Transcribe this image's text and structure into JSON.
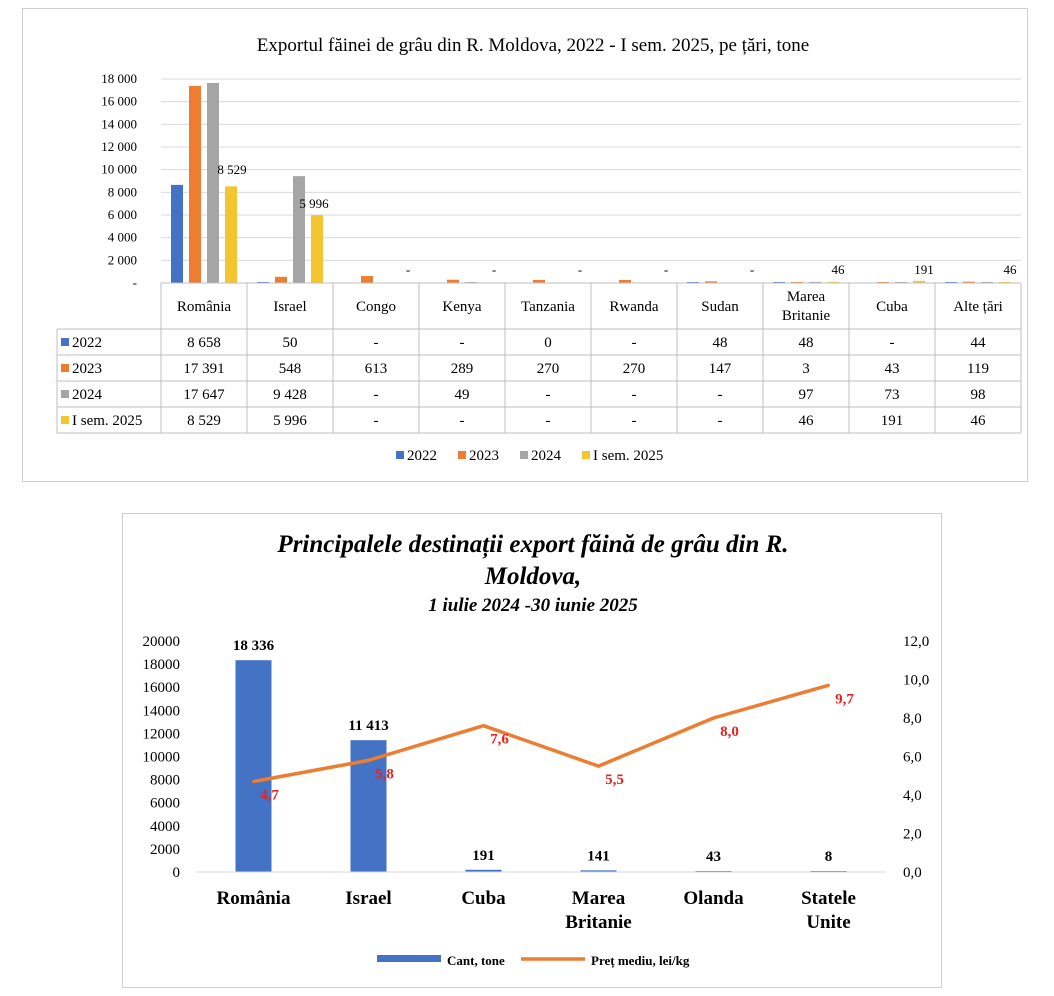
{
  "chart_data": [
    {
      "type": "bar",
      "title": "Exportul făinei de grâu din R. Moldova, 2022 - I sem. 2025, pe țări, tone",
      "categories": [
        "România",
        "Israel",
        "Congo",
        "Kenya",
        "Tanzania",
        "Rwanda",
        "Sudan",
        "Marea Britanie",
        "Cuba",
        "Alte țări"
      ],
      "y_ticks": [
        "18 000",
        "16 000",
        "14 000",
        "12 000",
        "10 000",
        "8 000",
        "6 000",
        "4 000",
        "2 000",
        "-"
      ],
      "ylim": [
        0,
        18000
      ],
      "grid": true,
      "legend_position": "bottom",
      "series": [
        {
          "name": "2022",
          "color": "#4472c4",
          "values": [
            8658,
            50,
            null,
            null,
            0,
            null,
            48,
            48,
            null,
            44
          ],
          "labels": [
            "8 658",
            "50",
            "-",
            "-",
            "0",
            "-",
            "48",
            "48",
            "-",
            "44"
          ]
        },
        {
          "name": "2023",
          "color": "#ed7d31",
          "values": [
            17391,
            548,
            613,
            289,
            270,
            270,
            147,
            3,
            43,
            119
          ],
          "labels": [
            "17 391",
            "548",
            "613",
            "289",
            "270",
            "270",
            "147",
            "3",
            "43",
            "119"
          ]
        },
        {
          "name": "2024",
          "color": "#a5a5a5",
          "values": [
            17647,
            9428,
            null,
            49,
            null,
            null,
            null,
            97,
            73,
            98
          ],
          "labels": [
            "17 647",
            "9 428",
            "-",
            "49",
            "-",
            "-",
            "-",
            "97",
            "73",
            "98"
          ]
        },
        {
          "name": "I sem. 2025",
          "color": "#f4c531",
          "values": [
            8529,
            5996,
            null,
            null,
            null,
            null,
            null,
            46,
            191,
            46
          ],
          "labels": [
            "8 529",
            "5 996",
            "-",
            "-",
            "-",
            "-",
            "-",
            "46",
            "191",
            "46"
          ]
        }
      ]
    },
    {
      "type": "bar",
      "title": "Principalele destinații export făină de grâu din R. Moldova,",
      "subtitle": "1 iulie 2024 -30 iunie 2025",
      "categories": [
        [
          "România"
        ],
        [
          "Israel"
        ],
        [
          "Cuba"
        ],
        [
          "Marea",
          "Britanie"
        ],
        [
          "Olanda"
        ],
        [
          "Statele",
          "Unite"
        ]
      ],
      "ylim": [
        0,
        20000
      ],
      "y_ticks": [
        "20000",
        "18000",
        "16000",
        "14000",
        "12000",
        "10000",
        "8000",
        "6000",
        "4000",
        "2000",
        "0"
      ],
      "y2lim": [
        0,
        12
      ],
      "y2_ticks": [
        "12,0",
        "10,0",
        "8,0",
        "6,0",
        "4,0",
        "2,0",
        "0,0"
      ],
      "legend_position": "bottom",
      "series": [
        {
          "name": "Cant, tone",
          "type": "bar",
          "color": "#4472c4",
          "values": [
            18336,
            11413,
            191,
            141,
            43,
            8
          ],
          "labels": [
            "18 336",
            "11 413",
            "191",
            "141",
            "43",
            "8"
          ]
        },
        {
          "name": "Preț mediu, lei/kg",
          "type": "line",
          "color": "#ed7d31",
          "label_color": "#e8221f",
          "values": [
            4.7,
            5.8,
            7.6,
            5.5,
            8.0,
            9.7
          ],
          "labels": [
            "4,7",
            "5,8",
            "7,6",
            "5,5",
            "8,0",
            "9,7"
          ]
        }
      ]
    }
  ]
}
